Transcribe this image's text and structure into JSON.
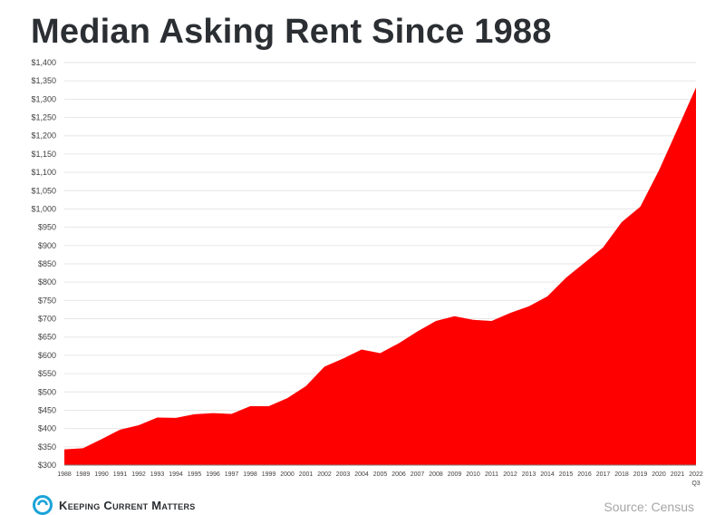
{
  "title": "Median Asking Rent Since 1988",
  "brand": {
    "name": "Keeping Current Matters",
    "logo_icon": "kcm-logo-icon"
  },
  "source": "Source: Census",
  "colors": {
    "area": "#ff0000",
    "title": "#2b2f33",
    "source": "#a6a6a6",
    "brand_blue": "#1aa3d9"
  },
  "chart_data": {
    "type": "area",
    "title": "Median Asking Rent Since 1988",
    "xlabel": "",
    "ylabel": "",
    "categories": [
      "1988",
      "1989",
      "1990",
      "1991",
      "1992",
      "1993",
      "1994",
      "1995",
      "1996",
      "1997",
      "1998",
      "1999",
      "2000",
      "2001",
      "2002",
      "2003",
      "2004",
      "2005",
      "2006",
      "2007",
      "2008",
      "2009",
      "2010",
      "2011",
      "2012",
      "2013",
      "2014",
      "2015",
      "2016",
      "2017",
      "2018",
      "2019",
      "2020",
      "2021",
      "2022"
    ],
    "last_category_note": "Q3",
    "values": [
      343,
      346,
      371,
      397,
      409,
      430,
      429,
      439,
      442,
      440,
      461,
      461,
      483,
      516,
      569,
      591,
      616,
      606,
      633,
      665,
      694,
      707,
      697,
      694,
      716,
      734,
      761,
      812,
      853,
      895,
      964,
      1006,
      1105,
      1218,
      1332
    ],
    "ylim": [
      300,
      1400
    ],
    "yticks": [
      300,
      350,
      400,
      450,
      500,
      550,
      600,
      650,
      700,
      750,
      800,
      850,
      900,
      950,
      1000,
      1050,
      1100,
      1150,
      1200,
      1250,
      1300,
      1350,
      1400
    ],
    "ytick_labels": [
      "$300",
      "$350",
      "$400",
      "$450",
      "$500",
      "$550",
      "$600",
      "$650",
      "$700",
      "$750",
      "$800",
      "$850",
      "$900",
      "$950",
      "$1,000",
      "$1,050",
      "$1,100",
      "$1,150",
      "$1,200",
      "$1,250",
      "$1,300",
      "$1,350",
      "$1,400"
    ],
    "grid": true,
    "legend": "none"
  }
}
